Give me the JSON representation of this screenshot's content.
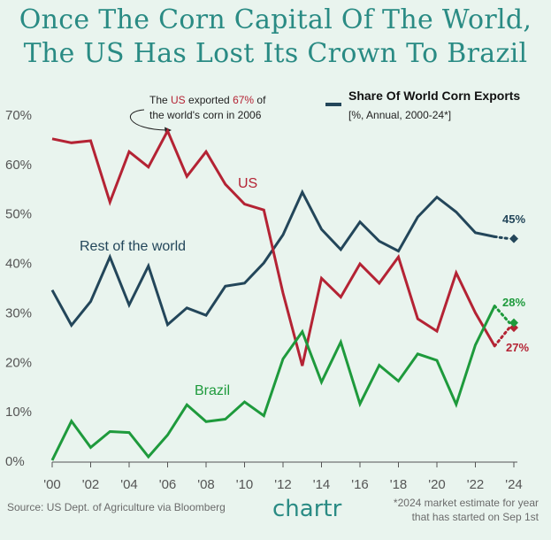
{
  "title": {
    "line1": "Once The Corn Capital Of The World,",
    "line2": "The US Has Lost Its Crown To Brazil"
  },
  "legend": {
    "title": "Share Of World Corn Exports",
    "subtitle": "[%, Annual, 2000-24*]"
  },
  "annotation": {
    "part1": "The ",
    "part2": "US",
    "part3": " exported ",
    "part4": "67%",
    "part5": " of",
    "line2": "the world's corn in 2006"
  },
  "footer": {
    "source": "Source: US Dept. of Agriculture via Bloomberg",
    "brand": "chartr",
    "note_line1": "*2024 market estimate for year",
    "note_line2": "that has started on Sep 1st"
  },
  "colors": {
    "us": "#b42334",
    "rest": "#23465a",
    "brazil": "#1e9a3c",
    "title": "#2a8b84",
    "background": "#e9f4ee"
  },
  "chart_data": {
    "type": "line",
    "title": "Share Of World Corn Exports",
    "subtitle": "[%, Annual, 2000-24*]",
    "x": [
      2000,
      2001,
      2002,
      2003,
      2004,
      2005,
      2006,
      2007,
      2008,
      2009,
      2010,
      2011,
      2012,
      2013,
      2014,
      2015,
      2016,
      2017,
      2018,
      2019,
      2020,
      2021,
      2022,
      2023
    ],
    "x_tick_labels": [
      "'00",
      "'02",
      "'04",
      "'06",
      "'08",
      "'10",
      "'12",
      "'14",
      "'16",
      "'18",
      "'20",
      "'22",
      "'24"
    ],
    "x_ticks": [
      2000,
      2002,
      2004,
      2006,
      2008,
      2010,
      2012,
      2014,
      2016,
      2018,
      2020,
      2022,
      2024
    ],
    "y_ticks": [
      0,
      10,
      20,
      30,
      40,
      50,
      60,
      70
    ],
    "y_tick_labels": [
      "0%",
      "10%",
      "20%",
      "30%",
      "40%",
      "50%",
      "60%",
      "70%"
    ],
    "ylim": [
      0,
      70
    ],
    "xlim": [
      2000,
      2024
    ],
    "grid": false,
    "series": [
      {
        "name": "US",
        "key": "us",
        "values": [
          65.2,
          64.4,
          64.8,
          52.4,
          62.6,
          59.5,
          66.8,
          57.6,
          62.6,
          56.0,
          52.0,
          50.8,
          34.0,
          19.3,
          37.0,
          33.2,
          39.9,
          36.0,
          41.3,
          28.8,
          26.3,
          38.1,
          30.0,
          23.3
        ],
        "estimate_2024": 27,
        "end_label": "27%"
      },
      {
        "name": "Rest of the world",
        "key": "rest",
        "values": [
          34.6,
          27.5,
          32.3,
          41.3,
          31.6,
          39.5,
          27.6,
          31.0,
          29.5,
          35.4,
          36.0,
          40.1,
          45.8,
          54.4,
          46.9,
          42.8,
          48.4,
          44.5,
          42.5,
          49.4,
          53.4,
          50.4,
          46.2,
          45.4
        ],
        "estimate_2024": 45,
        "end_label": "45%"
      },
      {
        "name": "Brazil",
        "key": "brazil",
        "values": [
          0.2,
          8.1,
          2.8,
          6.0,
          5.8,
          0.9,
          5.3,
          11.4,
          8.0,
          8.5,
          12.0,
          9.2,
          20.7,
          26.2,
          16.0,
          24.1,
          11.6,
          19.4,
          16.2,
          21.7,
          20.4,
          11.5,
          23.5,
          31.4
        ],
        "estimate_2024": 28,
        "end_label": "28%"
      }
    ]
  }
}
